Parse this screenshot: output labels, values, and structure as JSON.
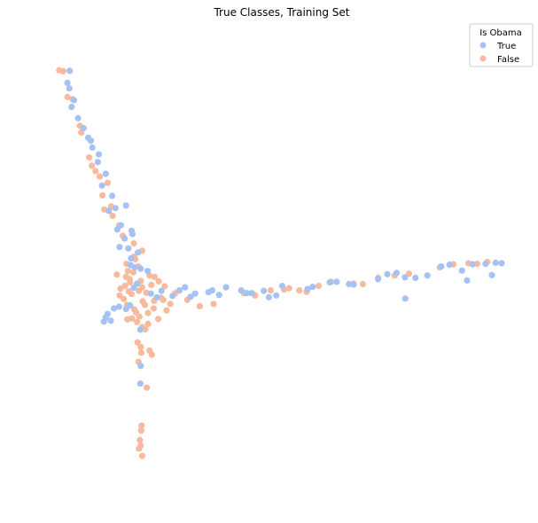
{
  "chart_data": {
    "type": "scatter",
    "title": "True Classes, Training Set",
    "xlabel": "",
    "ylabel": "",
    "axes_visible": false,
    "grid": false,
    "xlim": [
      0,
      100
    ],
    "ylim": [
      0,
      100
    ],
    "legend": {
      "title": "Is Obama",
      "placement": "top-right"
    },
    "series": [
      {
        "name": "True",
        "color": "#a4c2f4",
        "points": [
          [
            3.6,
            92.2
          ],
          [
            3.1,
            89.5
          ],
          [
            3.5,
            88.3
          ],
          [
            4.5,
            85.7
          ],
          [
            4.0,
            84.2
          ],
          [
            5.4,
            81.7
          ],
          [
            6.6,
            79.5
          ],
          [
            7.6,
            77.4
          ],
          [
            8.5,
            75.2
          ],
          [
            9.7,
            72.0
          ],
          [
            11.4,
            69.4
          ],
          [
            10.6,
            66.8
          ],
          [
            12.8,
            64.5
          ],
          [
            13.5,
            61.8
          ],
          [
            14.7,
            58.0
          ],
          [
            17.0,
            56.8
          ],
          [
            17.2,
            56.1
          ],
          [
            15.5,
            55.1
          ],
          [
            16.3,
            52.9
          ],
          [
            18.4,
            52.0
          ],
          [
            16.8,
            49.2
          ],
          [
            17.7,
            48.7
          ],
          [
            19.0,
            48.4
          ],
          [
            20.5,
            47.9
          ],
          [
            18.2,
            45.1
          ],
          [
            17.5,
            44.2
          ],
          [
            21.2,
            42.9
          ],
          [
            22.5,
            42.1
          ],
          [
            23.5,
            43.5
          ],
          [
            25.9,
            42.4
          ],
          [
            28.6,
            44.3
          ],
          [
            34.5,
            43.6
          ],
          [
            37.5,
            44.3
          ],
          [
            40.8,
            43.6
          ],
          [
            43.1,
            43.0
          ],
          [
            45.7,
            43.5
          ],
          [
            46.8,
            42.1
          ],
          [
            48.4,
            42.5
          ],
          [
            49.7,
            44.6
          ],
          [
            55.2,
            43.9
          ],
          [
            56.3,
            44.4
          ],
          [
            60.0,
            45.4
          ],
          [
            61.5,
            45.5
          ],
          [
            64.2,
            45.0
          ],
          [
            65.2,
            44.9
          ],
          [
            70.5,
            46.1
          ],
          [
            72.5,
            47.2
          ],
          [
            74.5,
            47.5
          ],
          [
            76.3,
            46.5
          ],
          [
            78.6,
            46.4
          ],
          [
            81.2,
            46.9
          ],
          [
            84.2,
            48.9
          ],
          [
            86.0,
            49.3
          ],
          [
            88.7,
            48.0
          ],
          [
            91.0,
            49.4
          ],
          [
            93.8,
            49.5
          ],
          [
            96.0,
            49.7
          ],
          [
            97.3,
            49.6
          ],
          [
            95.2,
            47.0
          ],
          [
            89.8,
            45.8
          ],
          [
            76.4,
            41.8
          ],
          [
            11.4,
            37.6
          ],
          [
            11.8,
            38.4
          ],
          [
            13.2,
            39.6
          ],
          [
            14.3,
            40.0
          ],
          [
            15.8,
            39.5
          ],
          [
            16.7,
            40.3
          ],
          [
            12.5,
            36.9
          ],
          [
            11.0,
            36.7
          ],
          [
            18.9,
            34.9
          ],
          [
            19.0,
            26.9
          ],
          [
            18.9,
            23.0
          ],
          [
            9.9,
            73.7
          ],
          [
            8.2,
            76.7
          ],
          [
            12.1,
            61.2
          ],
          [
            16.9,
            50.7
          ],
          [
            14.4,
            53.2
          ],
          [
            13.9,
            57.1
          ],
          [
            15.8,
            62.4
          ],
          [
            29.8,
            42.2
          ],
          [
            33.7,
            43.2
          ],
          [
            42.0,
            43.0
          ],
          [
            36.0,
            42.6
          ],
          [
            30.8,
            42.9
          ],
          [
            27.4,
            43.6
          ]
        ]
      },
      {
        "name": "False",
        "color": "#f7ba9e",
        "points": [
          [
            1.3,
            92.3
          ],
          [
            2.2,
            92.1
          ],
          [
            3.1,
            86.4
          ],
          [
            4.2,
            85.9
          ],
          [
            5.8,
            80.0
          ],
          [
            6.1,
            78.5
          ],
          [
            7.8,
            73.0
          ],
          [
            8.4,
            71.2
          ],
          [
            9.2,
            70.0
          ],
          [
            10.1,
            68.8
          ],
          [
            11.8,
            67.4
          ],
          [
            10.7,
            64.6
          ],
          [
            12.6,
            62.2
          ],
          [
            11.1,
            61.5
          ],
          [
            12.9,
            60.1
          ],
          [
            14.3,
            58.0
          ],
          [
            15.1,
            55.7
          ],
          [
            17.5,
            54.0
          ],
          [
            19.3,
            52.4
          ],
          [
            17.6,
            51.1
          ],
          [
            16.6,
            46.1
          ],
          [
            15.6,
            44.6
          ],
          [
            14.4,
            42.5
          ],
          [
            16.0,
            40.4
          ],
          [
            17.0,
            42.8
          ],
          [
            18.6,
            43.5
          ],
          [
            19.4,
            41.2
          ],
          [
            20.6,
            38.6
          ],
          [
            18.2,
            36.6
          ],
          [
            19.3,
            35.5
          ],
          [
            20.0,
            35.0
          ],
          [
            19.1,
            29.8
          ],
          [
            21.4,
            29.4
          ],
          [
            20.3,
            22.1
          ],
          [
            19.2,
            13.7
          ],
          [
            19.1,
            12.6
          ],
          [
            18.8,
            10.5
          ],
          [
            19.0,
            9.3
          ],
          [
            18.6,
            8.6
          ],
          [
            19.3,
            7.0
          ],
          [
            22.0,
            46.6
          ],
          [
            24.2,
            44.5
          ],
          [
            26.5,
            43.0
          ],
          [
            29.1,
            41.5
          ],
          [
            31.8,
            40.1
          ],
          [
            34.8,
            40.6
          ],
          [
            41.4,
            43.0
          ],
          [
            43.8,
            42.5
          ],
          [
            47.2,
            43.6
          ],
          [
            50.1,
            43.8
          ],
          [
            51.2,
            44.1
          ],
          [
            53.4,
            43.6
          ],
          [
            55.0,
            43.3
          ],
          [
            57.6,
            44.6
          ],
          [
            60.3,
            45.5
          ],
          [
            65.2,
            45.1
          ],
          [
            67.2,
            45.0
          ],
          [
            70.5,
            46.4
          ],
          [
            74.1,
            46.9
          ],
          [
            77.2,
            47.3
          ],
          [
            83.9,
            48.7
          ],
          [
            86.8,
            49.4
          ],
          [
            90.1,
            49.6
          ],
          [
            92.0,
            49.5
          ],
          [
            94.2,
            49.9
          ],
          [
            21.8,
            39.6
          ],
          [
            22.8,
            37.3
          ],
          [
            24.6,
            39.2
          ],
          [
            25.4,
            40.6
          ],
          [
            15.8,
            46.6
          ],
          [
            16.7,
            45.4
          ],
          [
            17.4,
            47.6
          ],
          [
            18.5,
            48.9
          ],
          [
            19.3,
            44.3
          ],
          [
            20.2,
            43.1
          ],
          [
            21.3,
            44.8
          ],
          [
            22.9,
            45.6
          ],
          [
            18.0,
            38.7
          ],
          [
            19.9,
            40.4
          ],
          [
            17.1,
            37.4
          ],
          [
            15.3,
            41.7
          ],
          [
            14.6,
            44.0
          ],
          [
            16.4,
            43.4
          ],
          [
            19.0,
            45.7
          ],
          [
            20.9,
            46.9
          ],
          [
            23.4,
            42.0
          ],
          [
            18.7,
            37.8
          ],
          [
            17.6,
            39.4
          ],
          [
            21.9,
            41.3
          ],
          [
            16.2,
            47.9
          ],
          [
            15.9,
            49.5
          ],
          [
            17.8,
            50.5
          ],
          [
            13.8,
            47.1
          ],
          [
            20.6,
            36.2
          ],
          [
            18.3,
            32.1
          ],
          [
            19.0,
            31.1
          ],
          [
            20.9,
            30.3
          ],
          [
            18.5,
            27.8
          ],
          [
            16.1,
            37.2
          ],
          [
            23.9,
            41.5
          ]
        ]
      }
    ]
  }
}
